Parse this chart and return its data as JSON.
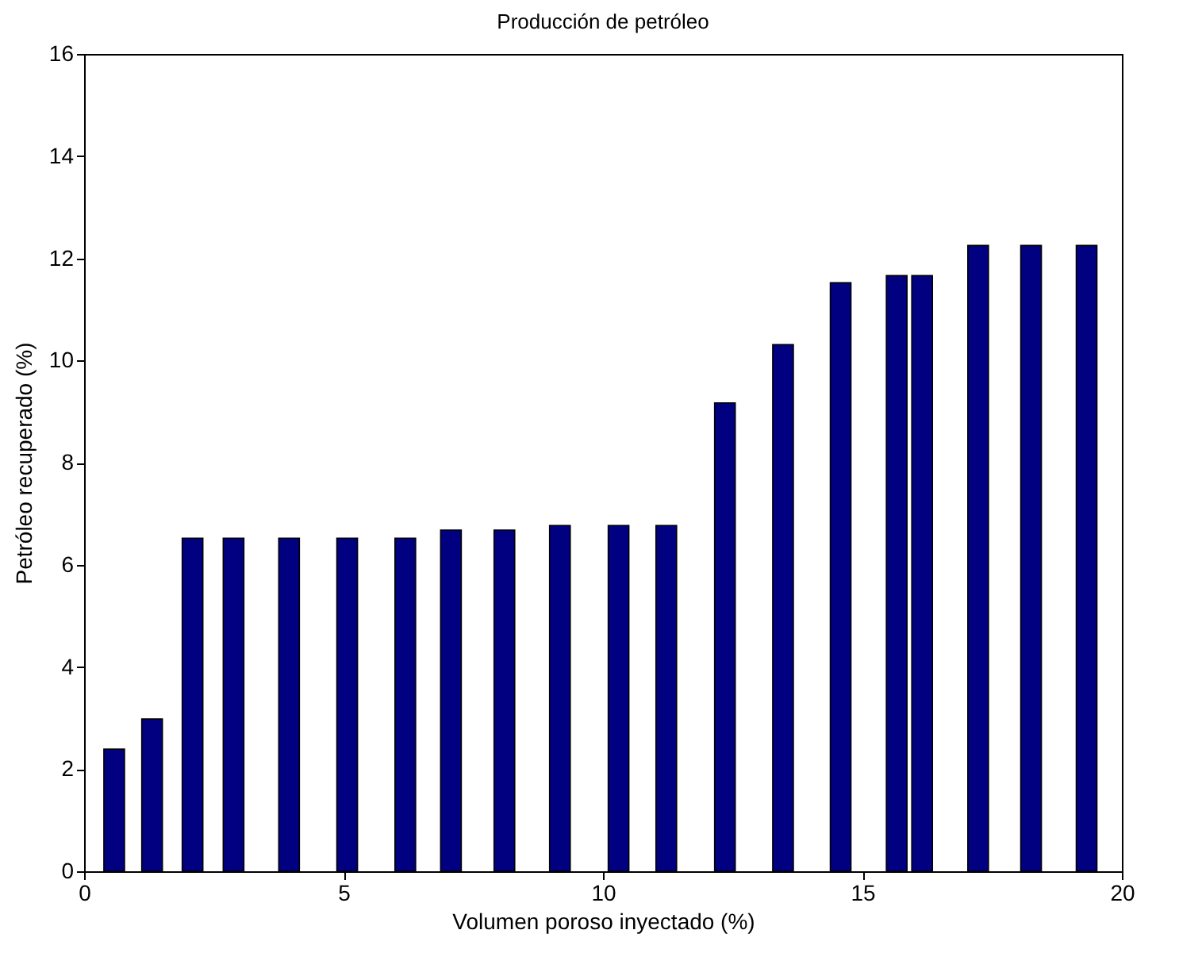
{
  "chart_data": {
    "type": "bar",
    "title": "Producción de petróleo",
    "xlabel": "Volumen poroso inyectado (%)",
    "ylabel": "Petróleo recuperado (%)",
    "x": [
      0.58,
      1.31,
      2.09,
      2.88,
      3.95,
      5.07,
      6.19,
      7.07,
      8.1,
      9.17,
      10.3,
      11.22,
      12.35,
      13.47,
      14.58,
      15.66,
      16.15,
      17.23,
      18.25,
      19.32
    ],
    "values": [
      2.39,
      2.98,
      6.52,
      6.52,
      6.52,
      6.52,
      6.52,
      6.68,
      6.68,
      6.77,
      6.77,
      6.77,
      9.17,
      10.31,
      11.52,
      11.66,
      11.66,
      12.25,
      12.25,
      12.25
    ],
    "color": "#000080",
    "xlim": [
      0,
      20
    ],
    "xticks": [
      0,
      5,
      10,
      15,
      20
    ],
    "ylim": [
      0,
      16
    ],
    "yticks": [
      0,
      2,
      4,
      6,
      8,
      10,
      12,
      14,
      16
    ],
    "grid": false
  }
}
